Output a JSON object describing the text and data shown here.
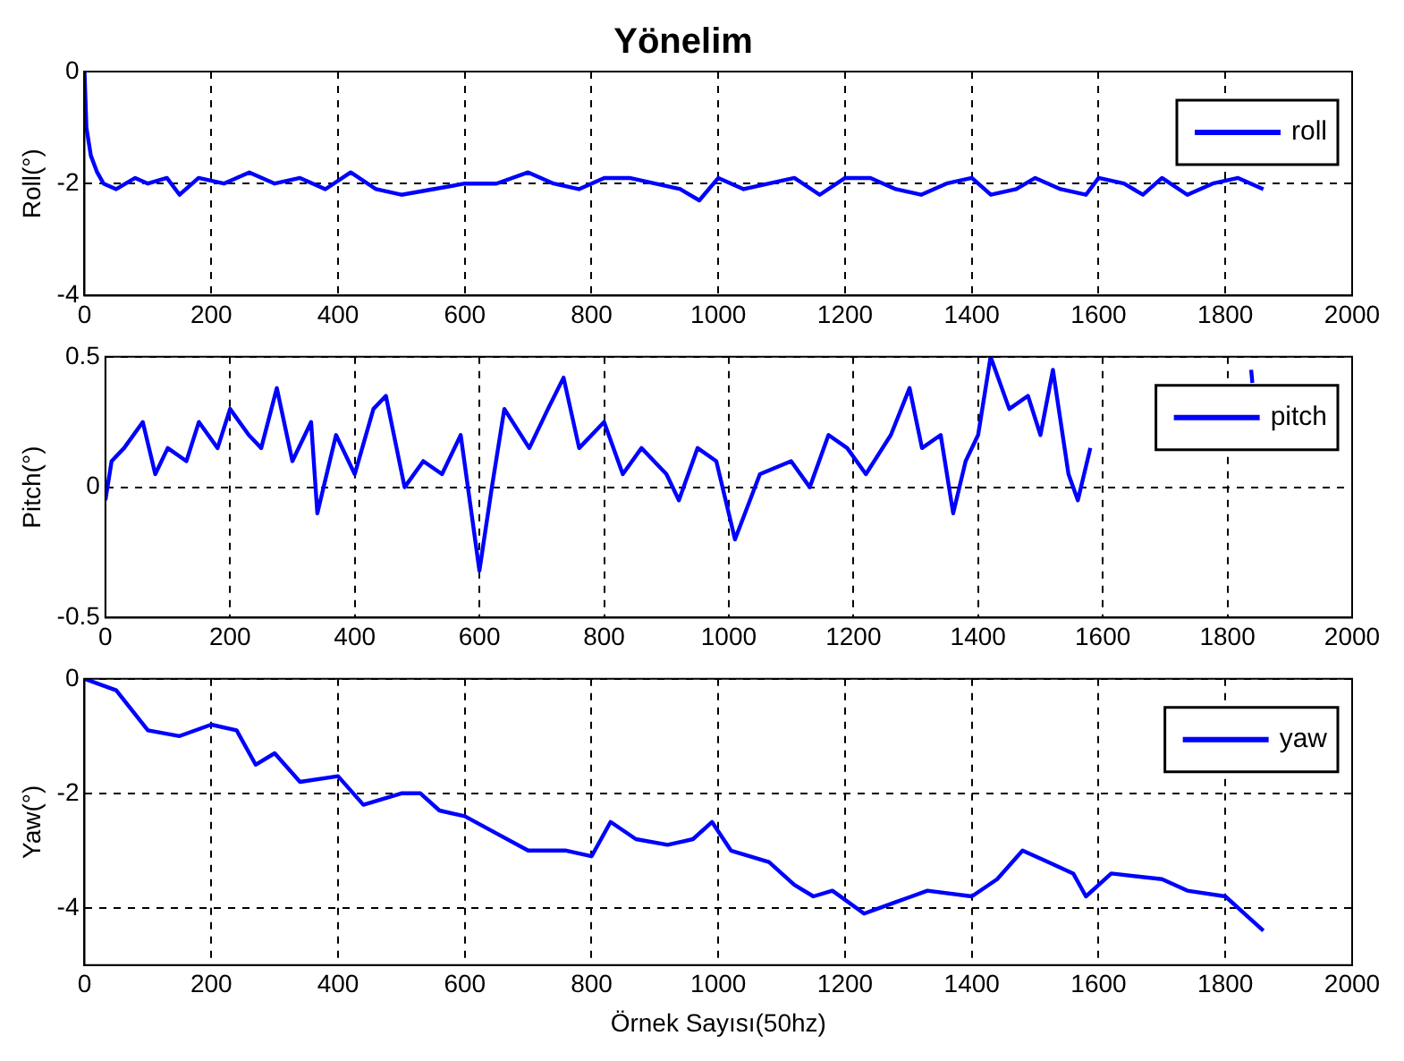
{
  "chart_data": [
    {
      "type": "line",
      "title": "Yönelim",
      "ylabel": "Roll(°)",
      "xlim": [
        0,
        2000
      ],
      "xticks": [
        0,
        200,
        400,
        600,
        800,
        1000,
        1200,
        1400,
        1600,
        1800,
        2000
      ],
      "ylim": [
        -4,
        0
      ],
      "yticks": [
        -4,
        -2,
        0
      ],
      "grid": true,
      "legend": "top right",
      "line_style": "solid",
      "x": [
        0,
        3,
        10,
        20,
        30,
        50,
        80,
        100,
        130,
        150,
        180,
        220,
        260,
        300,
        340,
        380,
        420,
        460,
        500,
        550,
        600,
        650,
        700,
        740,
        780,
        820,
        860,
        900,
        940,
        970,
        1000,
        1040,
        1080,
        1120,
        1160,
        1200,
        1240,
        1280,
        1320,
        1360,
        1400,
        1430,
        1470,
        1500,
        1540,
        1580,
        1600,
        1640,
        1670,
        1700,
        1740,
        1780,
        1820,
        1860
      ],
      "series": [
        {
          "name": "roll",
          "color": "#0000ff",
          "values": [
            0,
            -1,
            -1.5,
            -1.8,
            -2.0,
            -2.1,
            -1.9,
            -2.0,
            -1.9,
            -2.2,
            -1.9,
            -2.0,
            -1.8,
            -2.0,
            -1.9,
            -2.1,
            -1.8,
            -2.1,
            -2.2,
            -2.1,
            -2.0,
            -2.0,
            -1.8,
            -2.0,
            -2.1,
            -1.9,
            -1.9,
            -2.0,
            -2.1,
            -2.3,
            -1.9,
            -2.1,
            -2.0,
            -1.9,
            -2.2,
            -1.9,
            -1.9,
            -2.1,
            -2.2,
            -2.0,
            -1.9,
            -2.2,
            -2.1,
            -1.9,
            -2.1,
            -2.2,
            -1.9,
            -2.0,
            -2.2,
            -1.9,
            -2.2,
            -2.0,
            -1.9,
            -2.1
          ]
        }
      ]
    },
    {
      "type": "line",
      "ylabel": "Pitch(°)",
      "xlim": [
        0,
        2000
      ],
      "xticks": [
        0,
        200,
        400,
        600,
        800,
        1000,
        1200,
        1400,
        1600,
        1800,
        2000
      ],
      "ylim": [
        -0.5,
        0.5
      ],
      "yticks": [
        -0.5,
        0,
        0.5
      ],
      "grid": true,
      "legend": "top right",
      "line_style": "solid",
      "x": [
        0,
        10,
        30,
        60,
        80,
        100,
        130,
        150,
        180,
        200,
        230,
        250,
        275,
        300,
        330,
        340,
        370,
        400,
        430,
        450,
        480,
        510,
        540,
        570,
        600,
        620,
        640,
        680,
        710,
        735,
        760,
        800,
        830,
        860,
        900,
        920,
        950,
        980,
        1010,
        1050,
        1100,
        1130,
        1160,
        1190,
        1220,
        1260,
        1290,
        1310,
        1340,
        1360,
        1380,
        1400,
        1420,
        1450,
        1480,
        1500,
        1520,
        1545,
        1560,
        1580,
        1600,
        1838,
        1840
      ],
      "series": [
        {
          "name": "pitch",
          "color": "#0000ff",
          "values": [
            -0.05,
            0.1,
            0.15,
            0.25,
            0.05,
            0.15,
            0.1,
            0.25,
            0.15,
            0.3,
            0.2,
            0.15,
            0.38,
            0.1,
            0.25,
            -0.1,
            0.2,
            0.05,
            0.3,
            0.35,
            0.0,
            0.1,
            0.05,
            0.2,
            -0.32,
            0.0,
            0.3,
            0.15,
            0.3,
            0.42,
            0.15,
            0.25,
            0.05,
            0.15,
            0.05,
            -0.05,
            0.15,
            0.1,
            -0.2,
            0.05,
            0.1,
            0.0,
            0.2,
            0.15,
            0.05,
            0.2,
            0.38,
            0.15,
            0.2,
            -0.1,
            0.1,
            0.2,
            0.5,
            0.3,
            0.35,
            0.2,
            0.45,
            0.05,
            -0.05,
            0.15,
            null,
            0.45,
            0.4
          ]
        }
      ]
    },
    {
      "type": "line",
      "ylabel": "Yaw(°)",
      "xlabel": "Örnek Sayısı(50hz)",
      "xlim": [
        0,
        2000
      ],
      "xticks": [
        0,
        200,
        400,
        600,
        800,
        1000,
        1200,
        1400,
        1600,
        1800,
        2000
      ],
      "ylim": [
        -5,
        0
      ],
      "yticks": [
        -4,
        -2,
        0
      ],
      "grid": true,
      "legend": "top right",
      "line_style": "solid",
      "x": [
        0,
        50,
        100,
        150,
        200,
        240,
        270,
        300,
        340,
        400,
        440,
        500,
        530,
        560,
        600,
        650,
        700,
        760,
        800,
        830,
        870,
        920,
        960,
        990,
        1020,
        1080,
        1120,
        1150,
        1180,
        1230,
        1280,
        1330,
        1400,
        1440,
        1480,
        1520,
        1560,
        1580,
        1620,
        1700,
        1740,
        1800,
        1840,
        1860
      ],
      "series": [
        {
          "name": "yaw",
          "color": "#0000ff",
          "values": [
            0,
            -0.2,
            -0.9,
            -1.0,
            -0.8,
            -0.9,
            -1.5,
            -1.3,
            -1.8,
            -1.7,
            -2.2,
            -2.0,
            -2.0,
            -2.3,
            -2.4,
            -2.7,
            -3.0,
            -3.0,
            -3.1,
            -2.5,
            -2.8,
            -2.9,
            -2.8,
            -2.5,
            -3.0,
            -3.2,
            -3.6,
            -3.8,
            -3.7,
            -4.1,
            -3.9,
            -3.7,
            -3.8,
            -3.5,
            -3.0,
            -3.2,
            -3.4,
            -3.8,
            -3.4,
            -3.5,
            -3.7,
            -3.8,
            -4.2,
            -4.4
          ]
        }
      ]
    }
  ]
}
